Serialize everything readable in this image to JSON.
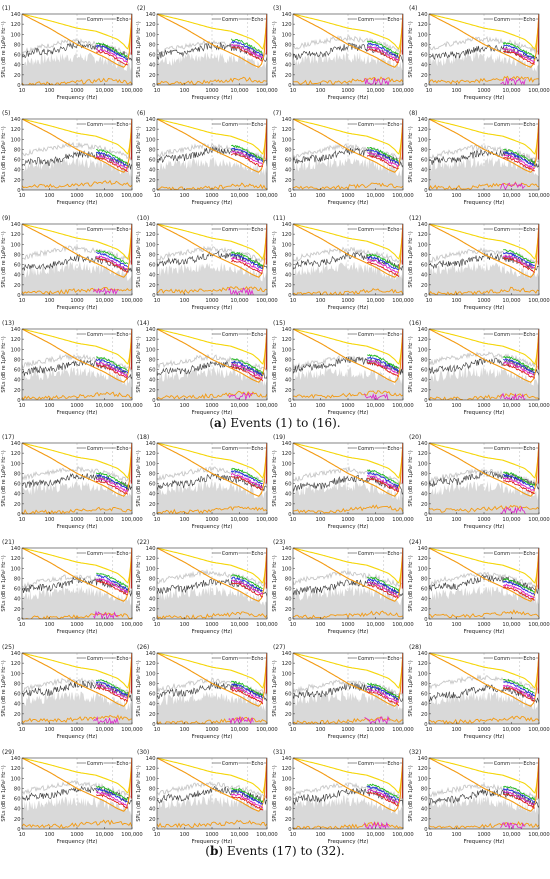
{
  "captions": {
    "a_letter": "a",
    "a_text": " Events (1) to (16).",
    "b_letter": "b",
    "b_text": " Events (17) to (32)."
  },
  "chart_data": {
    "type": "line",
    "panel_count": 32,
    "panel_labels": [
      "(1)",
      "(2)",
      "(3)",
      "(4)",
      "(5)",
      "(6)",
      "(7)",
      "(8)",
      "(9)",
      "(10)",
      "(11)",
      "(12)",
      "(13)",
      "(14)",
      "(15)",
      "(16)",
      "(17)",
      "(18)",
      "(19)",
      "(20)",
      "(21)",
      "(22)",
      "(23)",
      "(24)",
      "(25)",
      "(26)",
      "(27)",
      "(28)",
      "(29)",
      "(30)",
      "(31)",
      "(32)"
    ],
    "xlabel": "Frequency (Hz)",
    "ylabel": "SPLs (dB re 1µPa² Hz⁻¹)",
    "x_scale": "log",
    "xlim": [
      10,
      100000
    ],
    "ylim": [
      0,
      140
    ],
    "x_ticks": [
      10,
      100,
      1000,
      10000,
      100000
    ],
    "x_tick_labels": [
      "10",
      "100",
      "1000",
      "10,000",
      "100,000"
    ],
    "y_ticks": [
      0,
      20,
      40,
      60,
      80,
      100,
      120,
      140
    ],
    "y_tick_labels": [
      "0",
      "20",
      "40",
      "60",
      "80",
      "100",
      "120",
      "140"
    ],
    "band_labels": {
      "comm": "Comm",
      "echo": "Echo"
    },
    "band_ranges_hz": {
      "comm": [
        1000,
        20000
      ],
      "echo": [
        20000,
        100000
      ]
    },
    "colors": {
      "yellow": "#f5d60a",
      "orange": "#f39a12",
      "gray_light": "#c8c8c8",
      "gray_dark": "#3a3a3a",
      "green": "#22bb22",
      "blue": "#2233dd",
      "magenta": "#dd22cc",
      "red": "#dd2222",
      "fill": "#d9d9d9"
    },
    "series": [
      {
        "key": "audiogram_yellow",
        "x": [
          10,
          100,
          1000,
          5000,
          10000,
          30000,
          50000,
          70000,
          85000,
          100000
        ],
        "y": [
          140,
          127,
          112,
          106,
          100,
          90,
          80,
          70,
          90,
          140
        ]
      },
      {
        "key": "audiogram_orange",
        "x": [
          10,
          100,
          1000,
          10000,
          30000,
          50000,
          65000,
          80000,
          100000
        ],
        "y": [
          140,
          112,
          80,
          55,
          40,
          35,
          42,
          65,
          140
        ]
      },
      {
        "key": "received_light",
        "x": [
          10,
          30,
          100,
          300,
          1000,
          3000,
          10000,
          30000,
          100000
        ],
        "y": [
          68,
          76,
          80,
          86,
          88,
          84,
          80,
          72,
          62
        ]
      },
      {
        "key": "received_dark",
        "x": [
          10,
          30,
          100,
          300,
          1000,
          3000,
          10000,
          30000,
          100000
        ],
        "y": [
          55,
          62,
          60,
          68,
          76,
          74,
          70,
          62,
          50
        ]
      },
      {
        "key": "background_fill",
        "x": [
          10,
          100,
          1000,
          10000,
          100000
        ],
        "y": [
          45,
          52,
          56,
          50,
          35
        ]
      },
      {
        "key": "comm_colored",
        "x": [
          5000,
          10000,
          20000,
          30000,
          50000,
          70000
        ],
        "y": [
          76,
          74,
          66,
          60,
          54,
          50
        ]
      },
      {
        "key": "residual_orange",
        "x": [
          300,
          1000,
          3000,
          10000,
          30000,
          100000
        ],
        "y": [
          2,
          5,
          6,
          10,
          8,
          4
        ]
      }
    ]
  }
}
